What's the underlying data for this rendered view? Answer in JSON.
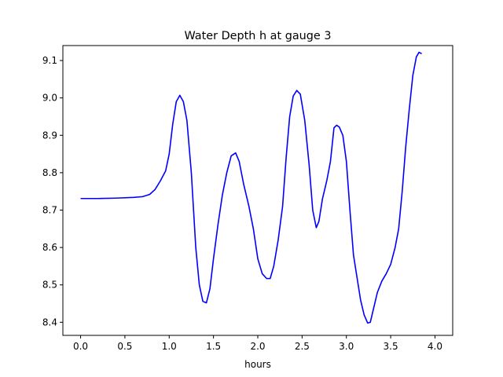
{
  "chart_data": {
    "type": "line",
    "title": "Water Depth h at gauge 3",
    "xlabel": "hours",
    "ylabel": "",
    "xlim": [
      -0.2,
      4.2
    ],
    "ylim": [
      8.365,
      9.14
    ],
    "grid": false,
    "xticks": [
      0.0,
      0.5,
      1.0,
      1.5,
      2.0,
      2.5,
      3.0,
      3.5,
      4.0
    ],
    "xtick_labels": [
      "0.0",
      "0.5",
      "1.0",
      "1.5",
      "2.0",
      "2.5",
      "3.0",
      "3.5",
      "4.0"
    ],
    "yticks": [
      8.4,
      8.5,
      8.6,
      8.7,
      8.8,
      8.9,
      9.0,
      9.1
    ],
    "ytick_labels": [
      "8.4",
      "8.5",
      "8.6",
      "8.7",
      "8.8",
      "8.9",
      "9.0",
      "9.1"
    ],
    "series": [
      {
        "color": "#0000ff",
        "points": [
          [
            0.0,
            8.731
          ],
          [
            0.2,
            8.731
          ],
          [
            0.4,
            8.732
          ],
          [
            0.6,
            8.734
          ],
          [
            0.7,
            8.736
          ],
          [
            0.78,
            8.742
          ],
          [
            0.84,
            8.755
          ],
          [
            0.9,
            8.778
          ],
          [
            0.96,
            8.805
          ],
          [
            1.0,
            8.85
          ],
          [
            1.04,
            8.93
          ],
          [
            1.08,
            8.99
          ],
          [
            1.12,
            9.007
          ],
          [
            1.16,
            8.99
          ],
          [
            1.2,
            8.94
          ],
          [
            1.25,
            8.8
          ],
          [
            1.3,
            8.6
          ],
          [
            1.34,
            8.5
          ],
          [
            1.38,
            8.456
          ],
          [
            1.42,
            8.452
          ],
          [
            1.46,
            8.49
          ],
          [
            1.5,
            8.57
          ],
          [
            1.55,
            8.66
          ],
          [
            1.6,
            8.74
          ],
          [
            1.65,
            8.8
          ],
          [
            1.7,
            8.845
          ],
          [
            1.75,
            8.853
          ],
          [
            1.79,
            8.83
          ],
          [
            1.84,
            8.77
          ],
          [
            1.9,
            8.71
          ],
          [
            1.95,
            8.65
          ],
          [
            2.0,
            8.57
          ],
          [
            2.05,
            8.53
          ],
          [
            2.1,
            8.517
          ],
          [
            2.14,
            8.517
          ],
          [
            2.18,
            8.55
          ],
          [
            2.23,
            8.62
          ],
          [
            2.28,
            8.71
          ],
          [
            2.32,
            8.84
          ],
          [
            2.36,
            8.95
          ],
          [
            2.4,
            9.005
          ],
          [
            2.44,
            9.02
          ],
          [
            2.48,
            9.01
          ],
          [
            2.53,
            8.94
          ],
          [
            2.58,
            8.82
          ],
          [
            2.62,
            8.7
          ],
          [
            2.66,
            8.653
          ],
          [
            2.69,
            8.67
          ],
          [
            2.73,
            8.73
          ],
          [
            2.78,
            8.78
          ],
          [
            2.82,
            8.83
          ],
          [
            2.86,
            8.92
          ],
          [
            2.89,
            8.927
          ],
          [
            2.92,
            8.922
          ],
          [
            2.96,
            8.9
          ],
          [
            3.0,
            8.83
          ],
          [
            3.04,
            8.7
          ],
          [
            3.08,
            8.58
          ],
          [
            3.12,
            8.52
          ],
          [
            3.16,
            8.46
          ],
          [
            3.2,
            8.42
          ],
          [
            3.24,
            8.398
          ],
          [
            3.27,
            8.4
          ],
          [
            3.31,
            8.44
          ],
          [
            3.35,
            8.48
          ],
          [
            3.4,
            8.51
          ],
          [
            3.45,
            8.53
          ],
          [
            3.5,
            8.555
          ],
          [
            3.55,
            8.6
          ],
          [
            3.59,
            8.65
          ],
          [
            3.63,
            8.75
          ],
          [
            3.67,
            8.87
          ],
          [
            3.71,
            8.97
          ],
          [
            3.75,
            9.06
          ],
          [
            3.79,
            9.11
          ],
          [
            3.82,
            9.122
          ],
          [
            3.85,
            9.118
          ]
        ]
      }
    ]
  }
}
